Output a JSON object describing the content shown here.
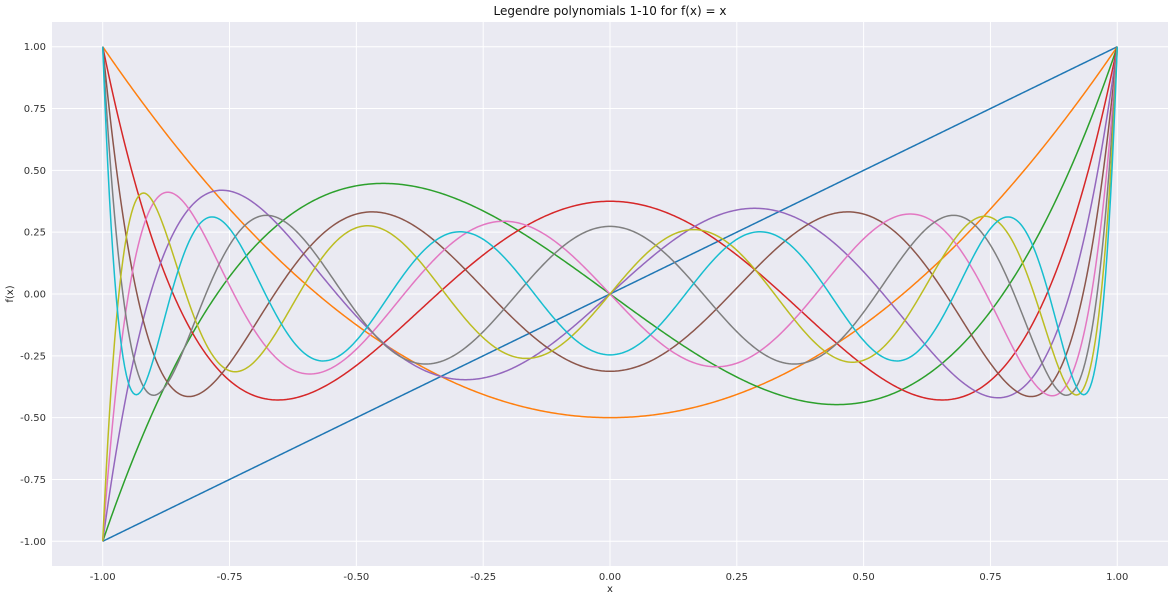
{
  "chart_data": {
    "type": "line",
    "title": "Legendre polynomials 1-10 for f(x) = x",
    "xlabel": "x",
    "ylabel": "f(x)",
    "xlim": [
      -1.1,
      1.1
    ],
    "ylim": [
      -1.1,
      1.1
    ],
    "x_ticks": [
      -1.0,
      -0.75,
      -0.5,
      -0.25,
      0.0,
      0.25,
      0.5,
      0.75,
      1.0
    ],
    "x_tick_labels": [
      "-1.00",
      "-0.75",
      "-0.50",
      "-0.25",
      "0.00",
      "0.25",
      "0.50",
      "0.75",
      "1.00"
    ],
    "y_ticks": [
      1.0,
      0.75,
      0.5,
      0.25,
      0.0,
      -0.25,
      -0.5,
      -0.75,
      -1.0
    ],
    "y_tick_labels": [
      "1.00",
      "0.75",
      "0.50",
      "0.25",
      "0.00",
      "-0.25",
      "-0.50",
      "-0.75",
      "-1.00"
    ],
    "grid": true,
    "background_color": "#eaeaf2",
    "grid_color": "#ffffff",
    "series": [
      {
        "degree": 1,
        "color": "#1f77b4"
      },
      {
        "degree": 2,
        "color": "#ff7f0e"
      },
      {
        "degree": 3,
        "color": "#2ca02c"
      },
      {
        "degree": 4,
        "color": "#d62728"
      },
      {
        "degree": 5,
        "color": "#9467bd"
      },
      {
        "degree": 6,
        "color": "#8c564b"
      },
      {
        "degree": 7,
        "color": "#e377c2"
      },
      {
        "degree": 8,
        "color": "#7f7f7f"
      },
      {
        "degree": 9,
        "color": "#bcbd22"
      },
      {
        "degree": 10,
        "color": "#17becf"
      }
    ]
  }
}
